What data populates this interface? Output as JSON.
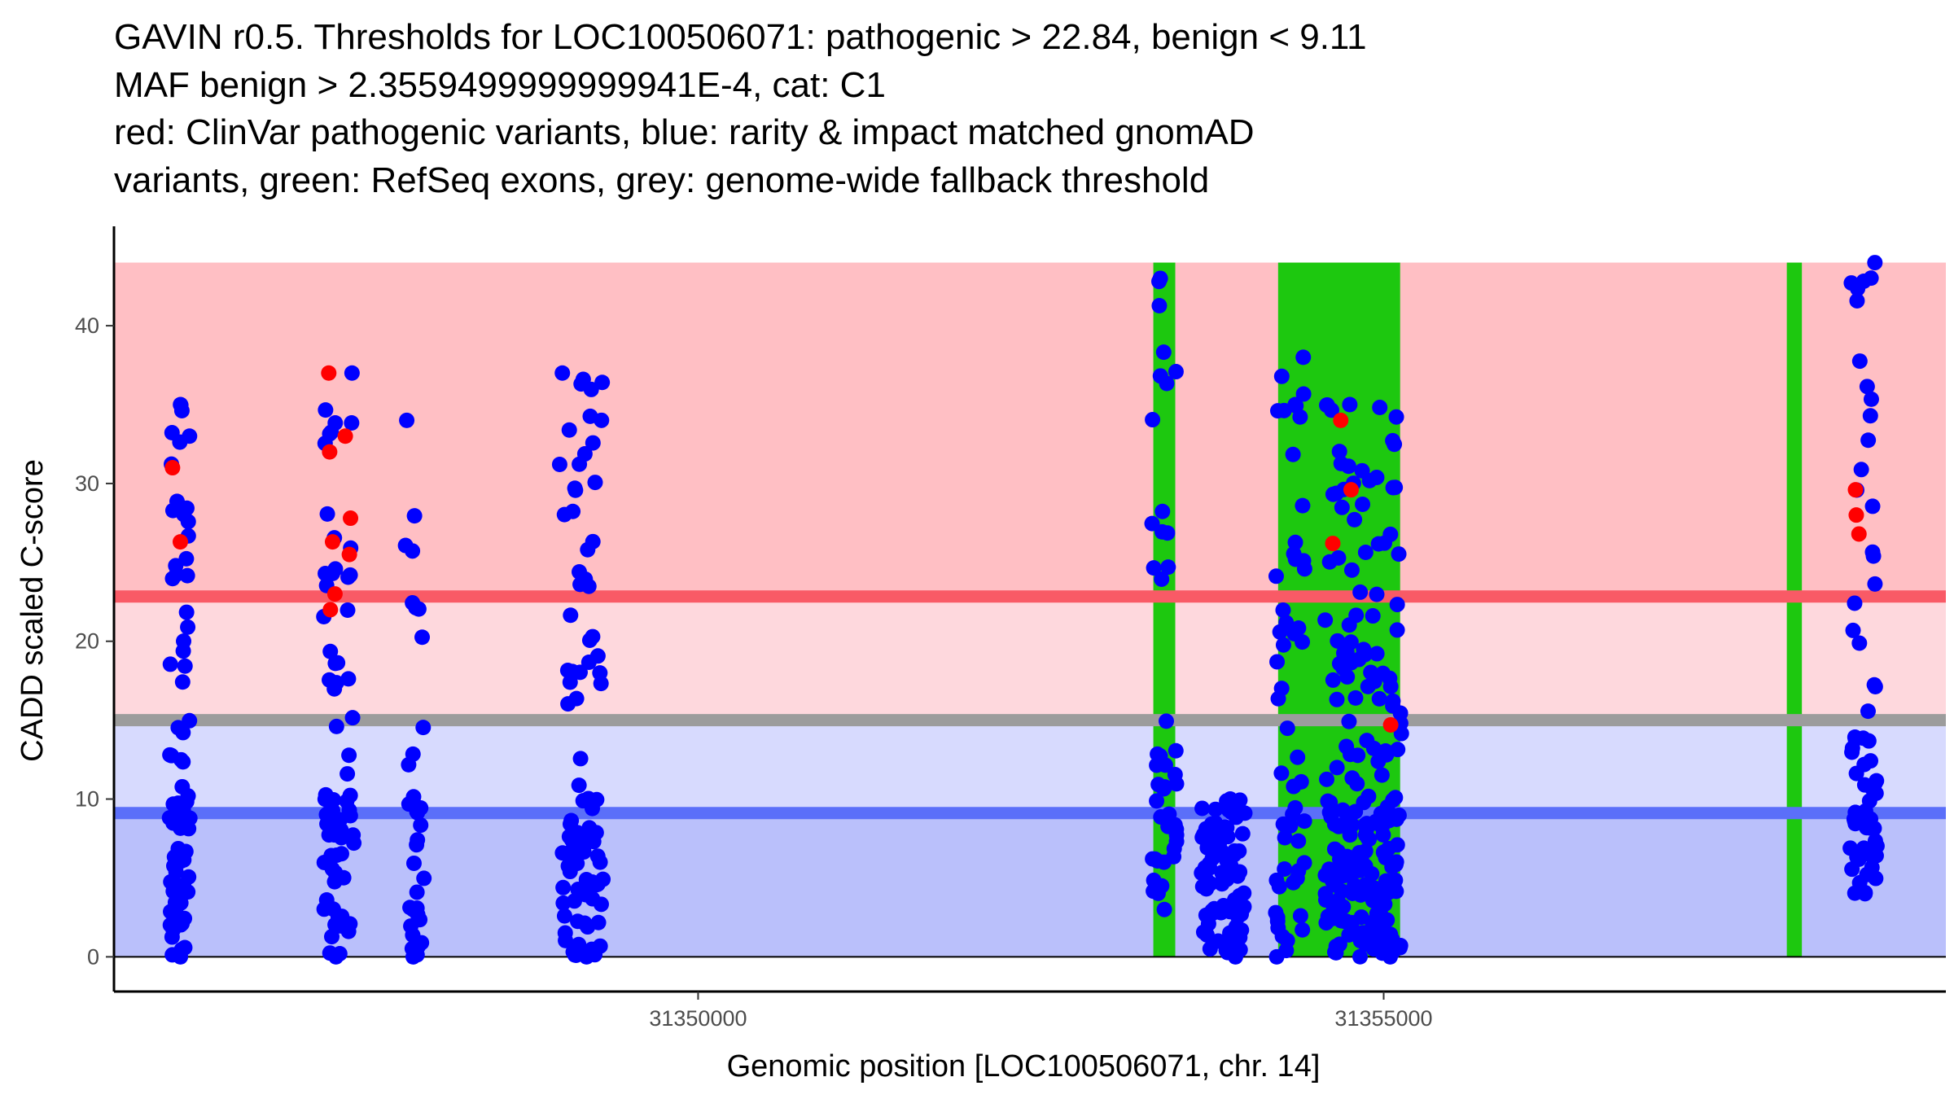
{
  "chart_data": {
    "type": "scatter",
    "title_lines": [
      "GAVIN r0.5. Thresholds for LOC100506071: pathogenic > 22.84, benign < 9.11",
      "MAF benign > 2.3559499999999941E-4, cat: C1",
      "red: ClinVar pathogenic variants, blue: rarity & impact matched gnomAD",
      "variants, green: RefSeq exons, grey: genome-wide fallback threshold"
    ],
    "xlabel": "Genomic position [LOC100506071, chr. 14]",
    "ylabel": "CADD scaled C-score",
    "xlim": [
      31345740,
      31359100
    ],
    "ylim": [
      -2.2,
      46.3
    ],
    "x_ticks": [
      31350000,
      31355000
    ],
    "x_tick_labels": [
      "31350000",
      "31355000"
    ],
    "y_ticks": [
      0,
      10,
      20,
      30,
      40
    ],
    "y_tick_labels": [
      "0",
      "10",
      "20",
      "30",
      "40"
    ],
    "thresholds": {
      "pathogenic": 22.84,
      "benign": 9.11,
      "fallback": 15,
      "band_top": 44
    },
    "exons": [
      {
        "start": 31353320,
        "end": 31353480
      },
      {
        "start": 31354230,
        "end": 31355120
      },
      {
        "start": 31357940,
        "end": 31358050
      }
    ],
    "clusters": [
      {
        "center": 31346220,
        "width": 150,
        "min": 0,
        "max": 35,
        "count": 80,
        "pathogenic": [
          31,
          26.3
        ]
      },
      {
        "center": 31347380,
        "width": 220,
        "min": 0,
        "max": 37,
        "count": 72,
        "pathogenic": [
          37,
          33,
          32,
          27.8,
          26.3,
          25.5,
          23,
          22
        ]
      },
      {
        "center": 31347930,
        "width": 150,
        "min": 0,
        "max": 34,
        "count": 34,
        "pathogenic": []
      },
      {
        "center": 31349150,
        "width": 320,
        "min": 0,
        "max": 37,
        "count": 95,
        "pathogenic": []
      },
      {
        "center": 31353400,
        "width": 180,
        "min": 3,
        "max": 43,
        "count": 45,
        "pathogenic": []
      },
      {
        "center": 31353830,
        "width": 320,
        "min": 0,
        "max": 10,
        "count": 95,
        "pathogenic": []
      },
      {
        "center": 31354320,
        "width": 220,
        "min": 0,
        "max": 38,
        "count": 55,
        "pathogenic": []
      },
      {
        "center": 31354850,
        "width": 560,
        "min": 0,
        "max": 35,
        "count": 210,
        "pathogenic": [
          34,
          29.6,
          26.2,
          14.7
        ]
      },
      {
        "center": 31358500,
        "width": 200,
        "min": 4,
        "max": 44,
        "count": 70,
        "pathogenic": [
          29.6,
          28,
          26.8
        ]
      }
    ]
  },
  "colors": {
    "pathogenic_zone": "#ffbfc4",
    "mid_path_zone": "#fed8dd",
    "mid_benign_zone": "#d7dafe",
    "benign_zone": "#bac0fb",
    "pathogenic_line": "#f95a66",
    "benign_line": "#5b6ff9",
    "fallback_line": "#9c9c9c",
    "exon": "#1dc80f",
    "gnomad_point": "#0000ff",
    "clinvar_point": "#ff0000"
  }
}
